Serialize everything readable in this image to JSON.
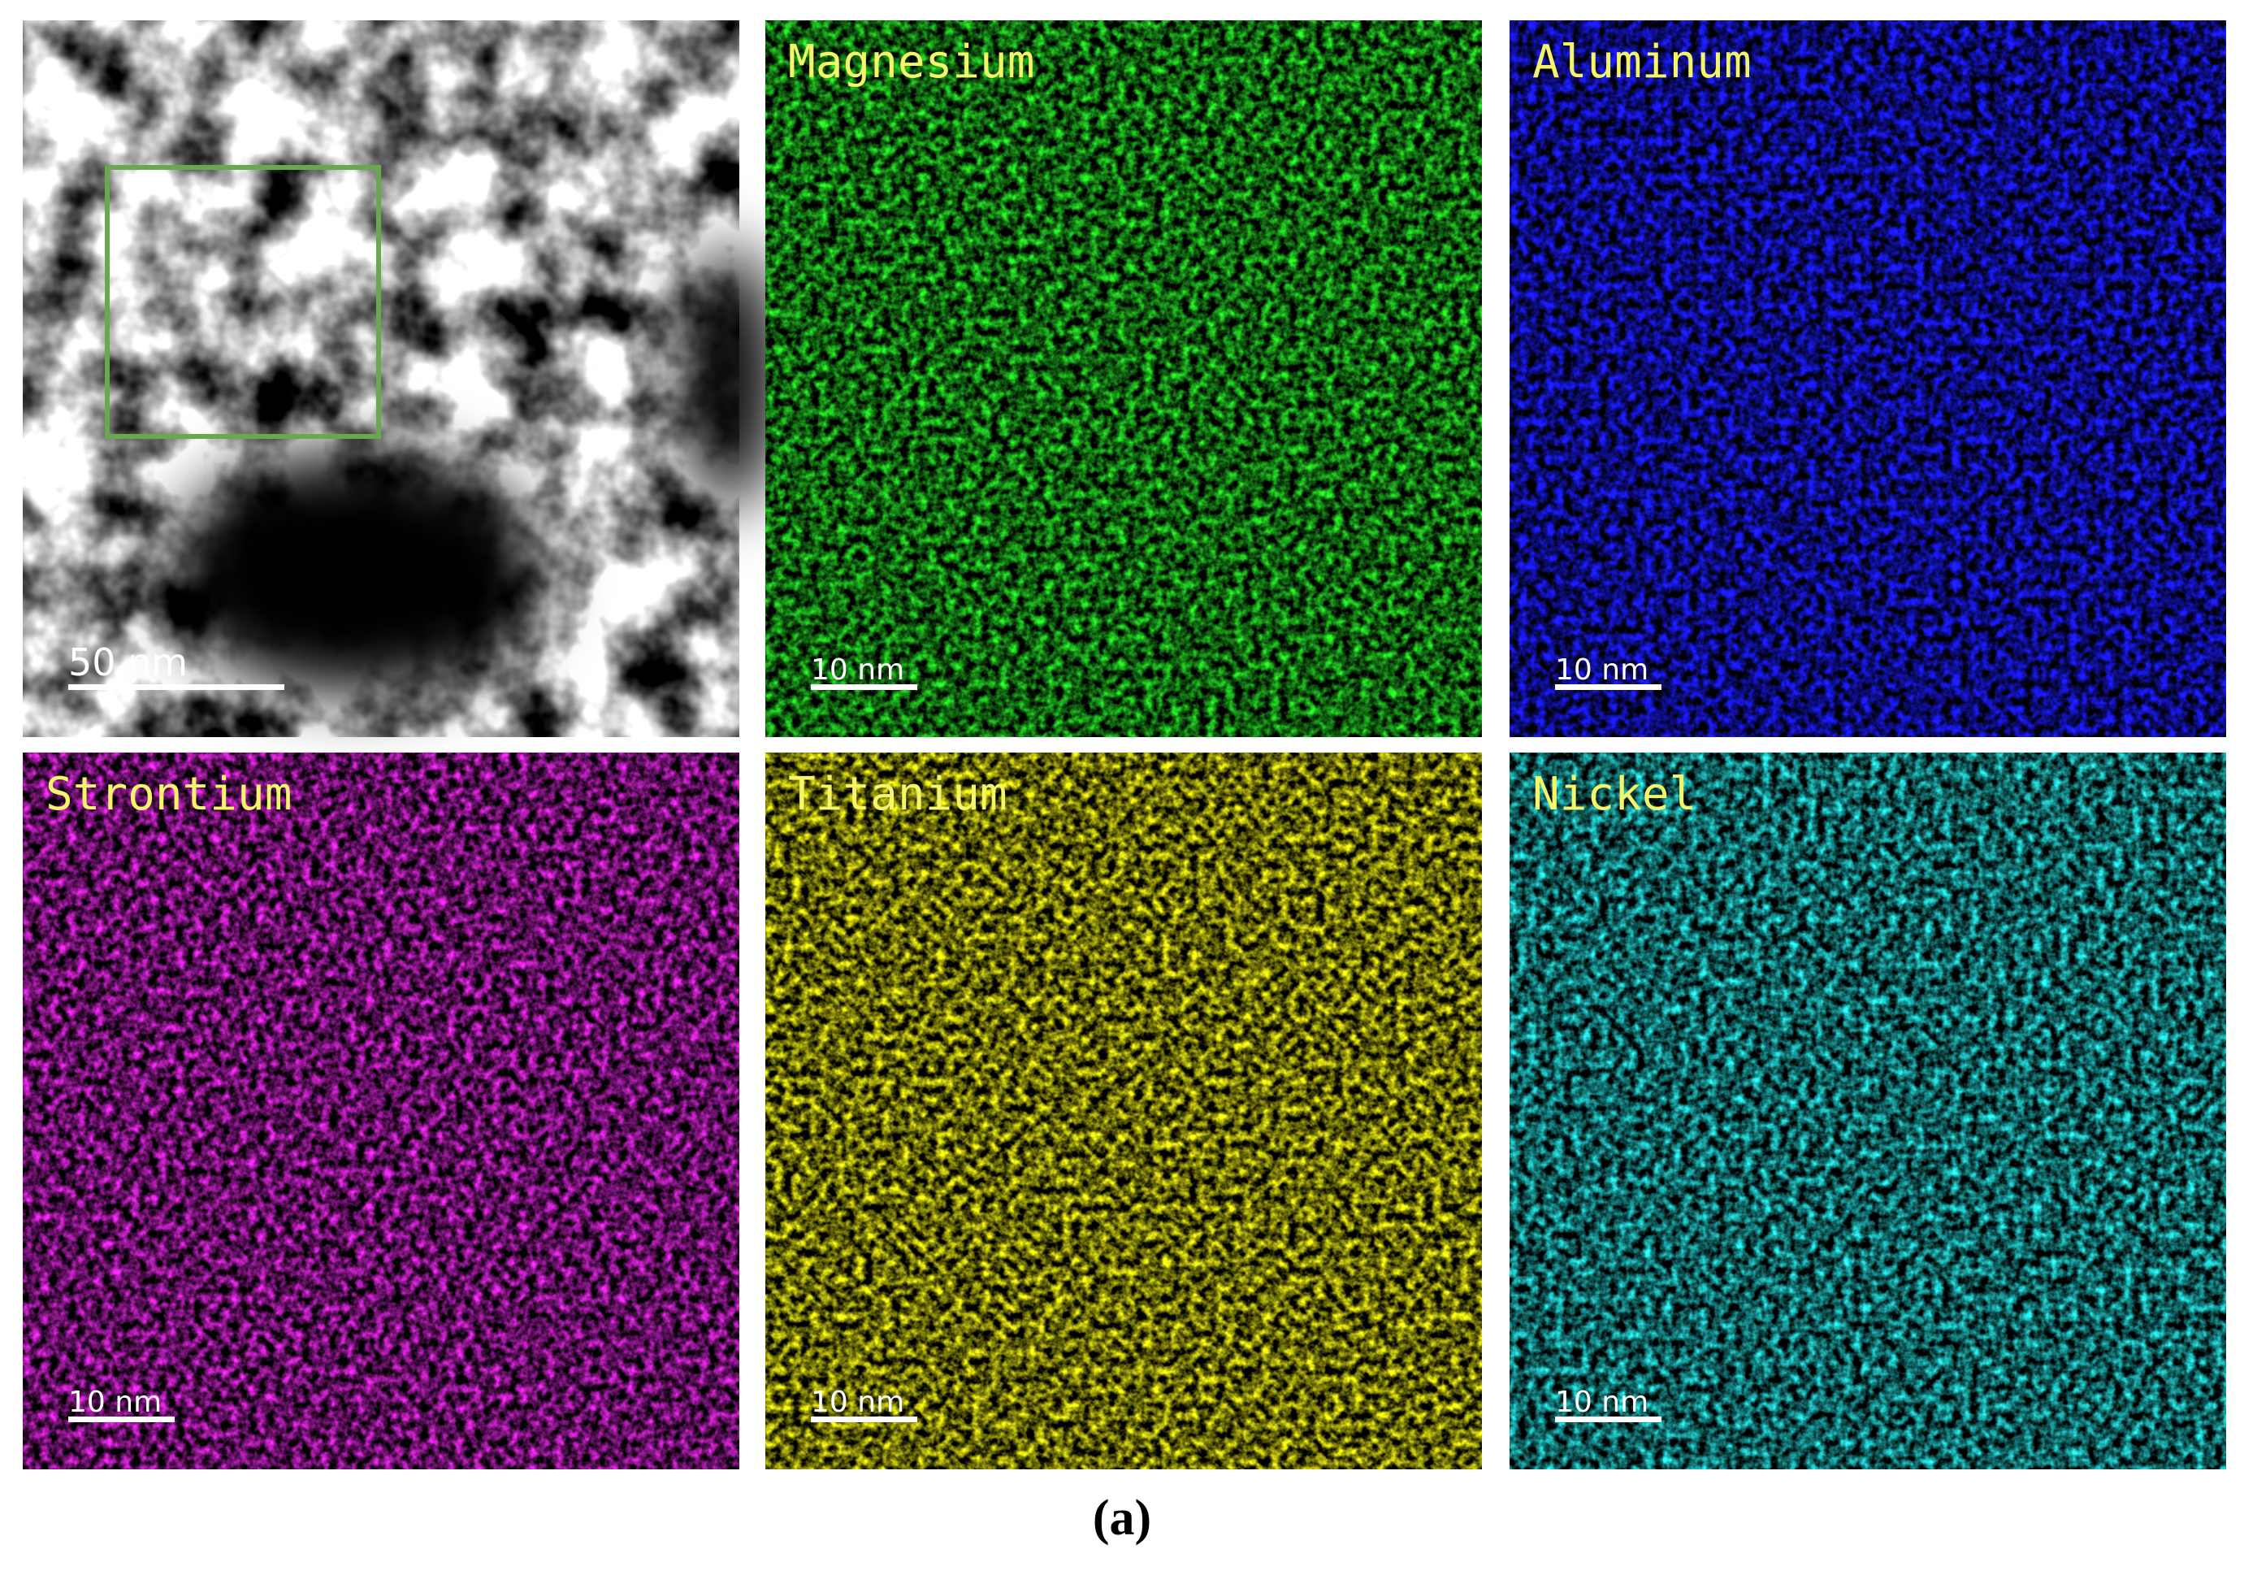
{
  "panels": [
    {
      "label": null,
      "scale_bar": "50 nm",
      "color": "#ffffff"
    },
    {
      "label": "Magnesium",
      "scale_bar": "10 nm",
      "color": "#22cc22"
    },
    {
      "label": "Aluminum",
      "scale_bar": "10 nm",
      "color": "#1a1aff"
    },
    {
      "label": "Strontium",
      "scale_bar": "10 nm",
      "color": "#cc22cc"
    },
    {
      "label": "Titanium",
      "scale_bar": "10 nm",
      "color": "#dddd11"
    },
    {
      "label": "Nickel",
      "scale_bar": "10 nm",
      "color": "#22cccc"
    }
  ],
  "caption": "(a)"
}
